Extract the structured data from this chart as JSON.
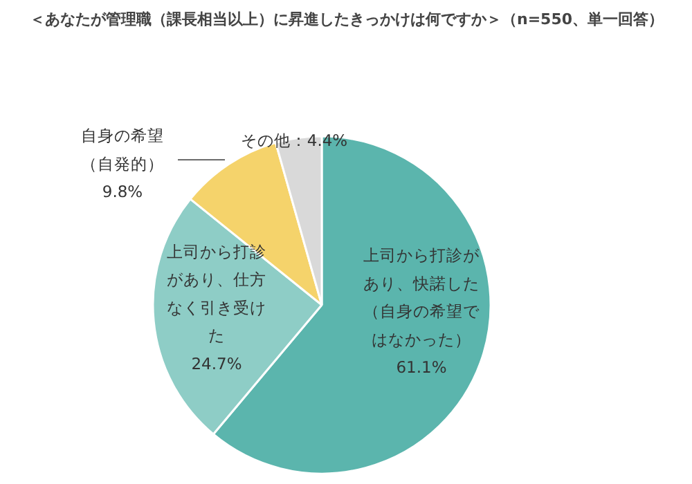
{
  "chart_data": {
    "type": "pie",
    "title": "＜あなたが管理職（課長相当以上）に昇進したきっかけは何ですか＞（n=550、単一回答）",
    "categories": [
      "上司から打診があり、快諾した（自身の希望ではなかった）",
      "上司から打診があり、仕方なく引き受けた",
      "自身の希望（自発的）",
      "その他"
    ],
    "values": [
      61.1,
      24.7,
      9.8,
      4.4
    ],
    "value_labels": [
      "61.1%",
      "24.7%",
      "9.8%",
      "4.4%"
    ],
    "colors": [
      "#5bb5ad",
      "#8ecdc6",
      "#f5d36b",
      "#d9d9d9"
    ]
  }
}
